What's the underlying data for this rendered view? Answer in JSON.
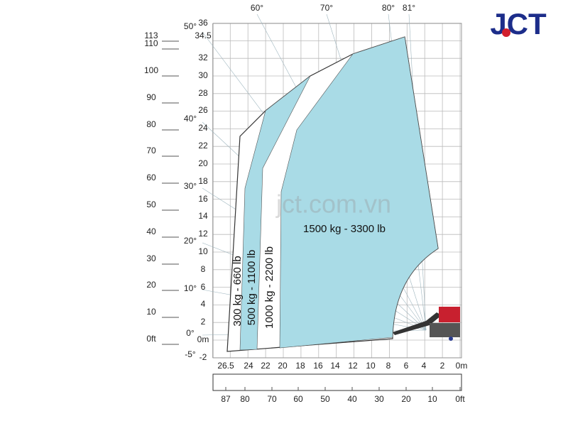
{
  "logo": "JCT",
  "watermark": "jct.com.vn",
  "angles": [
    "60°",
    "70°",
    "80°",
    "81°",
    "50°",
    "40°",
    "30°",
    "20°",
    "10°",
    "0°",
    "-5°"
  ],
  "height_m": [
    "36",
    "34.5",
    "32",
    "30",
    "28",
    "26",
    "24",
    "22",
    "20",
    "18",
    "16",
    "14",
    "12",
    "10",
    "8",
    "6",
    "4",
    "2",
    "0m",
    "-2"
  ],
  "height_ft": [
    "113",
    "110",
    "100",
    "90",
    "80",
    "70",
    "60",
    "50",
    "40",
    "30",
    "20",
    "10",
    "0ft"
  ],
  "reach_m": [
    "26.5",
    "24",
    "22",
    "20",
    "18",
    "16",
    "14",
    "12",
    "10",
    "8",
    "6",
    "4",
    "2",
    "0m"
  ],
  "reach_ft": [
    "87",
    "80",
    "70",
    "60",
    "50",
    "40",
    "30",
    "20",
    "10",
    "0ft"
  ],
  "zones": [
    "300 kg - 660 lb",
    "500 kg - 1100 lb",
    "1000 kg - 2200 lb",
    "1500 kg - 3300 lb"
  ]
}
